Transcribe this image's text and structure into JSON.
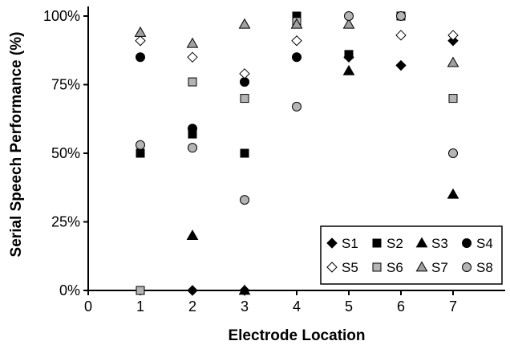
{
  "chart_data": {
    "type": "scatter",
    "title": "",
    "xlabel": "Electrode Location",
    "ylabel": "Serial Speech Performance (%)",
    "xlim": [
      0,
      8
    ],
    "ylim": [
      0,
      100
    ],
    "x_ticks": [
      "0",
      "1",
      "2",
      "3",
      "4",
      "5",
      "6",
      "7"
    ],
    "y_ticks": [
      "0%",
      "25%",
      "50%",
      "75%",
      "100%"
    ],
    "grid": false,
    "legend_placement": "bottom-right",
    "series": [
      {
        "name": "S1",
        "marker": "diamond-filled",
        "color": "#000000",
        "points": [
          {
            "x": 2,
            "y": 0
          },
          {
            "x": 3,
            "y": 0
          },
          {
            "x": 5,
            "y": 85
          },
          {
            "x": 6,
            "y": 82
          },
          {
            "x": 7,
            "y": 91
          }
        ]
      },
      {
        "name": "S2",
        "marker": "square-filled",
        "color": "#000000",
        "points": [
          {
            "x": 1,
            "y": 50
          },
          {
            "x": 2,
            "y": 57
          },
          {
            "x": 3,
            "y": 50
          },
          {
            "x": 4,
            "y": 100
          },
          {
            "x": 5,
            "y": 86
          }
        ]
      },
      {
        "name": "S3",
        "marker": "triangle-filled",
        "color": "#000000",
        "points": [
          {
            "x": 2,
            "y": 20
          },
          {
            "x": 3,
            "y": 0
          },
          {
            "x": 5,
            "y": 80
          },
          {
            "x": 7,
            "y": 35
          }
        ]
      },
      {
        "name": "S4",
        "marker": "circle-filled",
        "color": "#000000",
        "points": [
          {
            "x": 1,
            "y": 85
          },
          {
            "x": 2,
            "y": 59
          },
          {
            "x": 3,
            "y": 76
          },
          {
            "x": 4,
            "y": 85
          }
        ]
      },
      {
        "name": "S5",
        "marker": "diamond-open",
        "color": "#ffffff",
        "points": [
          {
            "x": 1,
            "y": 91
          },
          {
            "x": 2,
            "y": 85
          },
          {
            "x": 3,
            "y": 79
          },
          {
            "x": 4,
            "y": 91
          },
          {
            "x": 6,
            "y": 93
          },
          {
            "x": 7,
            "y": 93
          }
        ]
      },
      {
        "name": "S6",
        "marker": "square-gray",
        "color": "#b4b4b4",
        "points": [
          {
            "x": 1,
            "y": 0
          },
          {
            "x": 2,
            "y": 76
          },
          {
            "x": 3,
            "y": 70
          },
          {
            "x": 4,
            "y": 98
          },
          {
            "x": 6,
            "y": 100
          },
          {
            "x": 7,
            "y": 70
          }
        ]
      },
      {
        "name": "S7",
        "marker": "triangle-gray",
        "color": "#a0a0a0",
        "points": [
          {
            "x": 1,
            "y": 94
          },
          {
            "x": 2,
            "y": 90
          },
          {
            "x": 3,
            "y": 97
          },
          {
            "x": 4,
            "y": 97
          },
          {
            "x": 5,
            "y": 97
          },
          {
            "x": 7,
            "y": 83
          }
        ]
      },
      {
        "name": "S8",
        "marker": "circle-gray",
        "color": "#b4b4b4",
        "points": [
          {
            "x": 1,
            "y": 53
          },
          {
            "x": 2,
            "y": 52
          },
          {
            "x": 3,
            "y": 33
          },
          {
            "x": 4,
            "y": 67
          },
          {
            "x": 5,
            "y": 100
          },
          {
            "x": 6,
            "y": 100
          },
          {
            "x": 7,
            "y": 50
          }
        ]
      }
    ]
  }
}
